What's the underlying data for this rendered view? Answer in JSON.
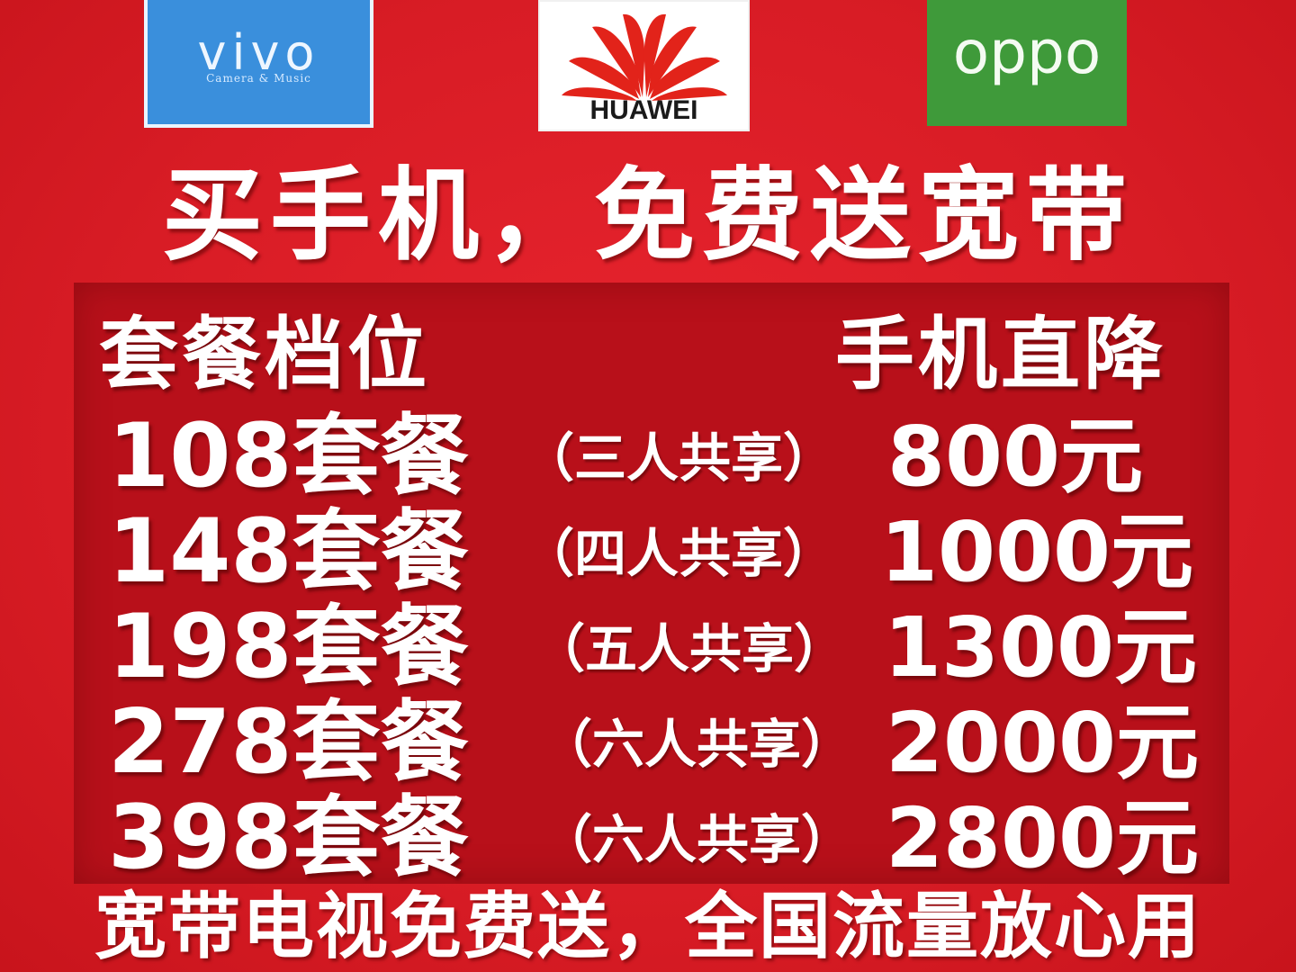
{
  "brands": {
    "vivo": {
      "name": "vivo",
      "tagline": "Camera & Music",
      "color": "#3a8fdc"
    },
    "huawei": {
      "name": "HUAWEI",
      "color": "#e2231a"
    },
    "oppo": {
      "name": "oppo",
      "color": "#3f9a3a"
    }
  },
  "headline": "买手机，免费送宽带",
  "table": {
    "col_plan": "套餐档位",
    "col_discount": "手机直降",
    "rows": [
      {
        "plan": "108套餐",
        "share": "（三人共享）",
        "price": "800元"
      },
      {
        "plan": "148套餐",
        "share": "（四人共享）",
        "price": "1000元"
      },
      {
        "plan": "198套餐",
        "share": "（五人共享）",
        "price": "1300元"
      },
      {
        "plan": "278套餐",
        "share": "（六人共享）",
        "price": "2000元"
      },
      {
        "plan": "398套餐",
        "share": "（六人共享）",
        "price": "2800元"
      }
    ]
  },
  "footer": "宽带电视免费送，全国流量放心用",
  "colors": {
    "background": "#e0202a",
    "panel": "#b8101a",
    "text": "#ffffff"
  }
}
